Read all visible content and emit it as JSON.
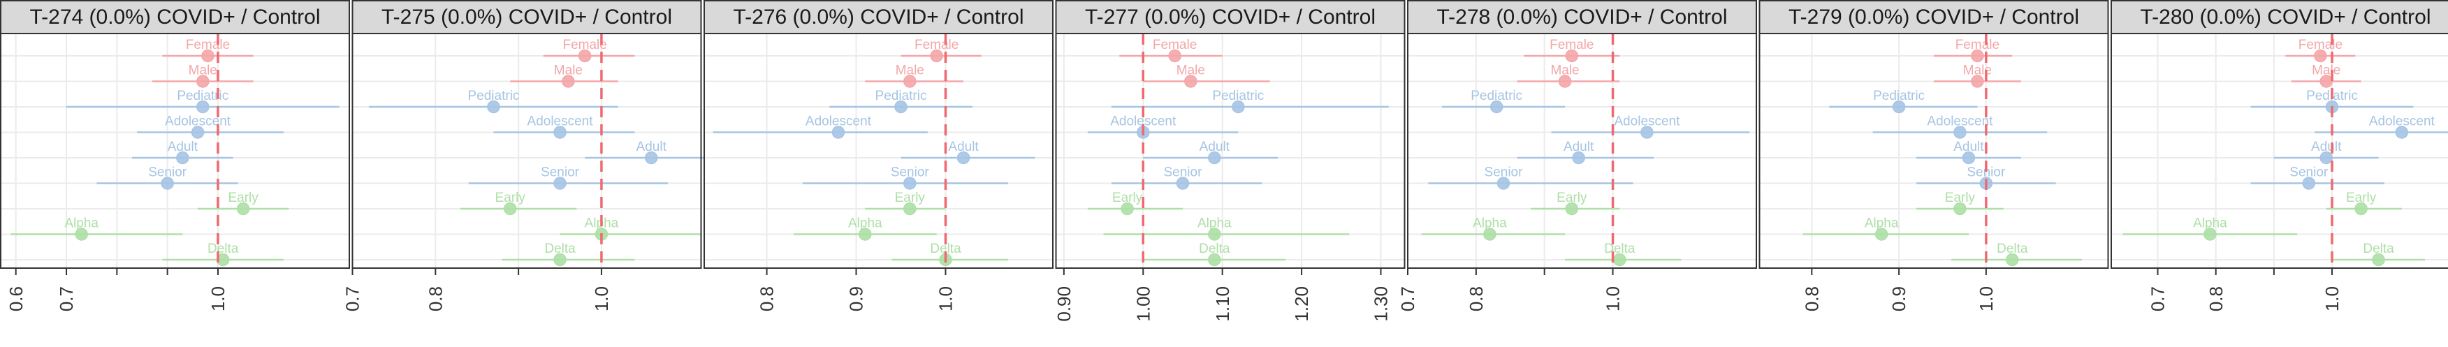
{
  "figure": {
    "background": "#ffffff",
    "strip_fill": "#d9d9d9",
    "grid_color": "#ebebeb",
    "reference_line_color": "#ef6a70",
    "group_colors": {
      "Sex": "#f4a6a8",
      "Age": "#a6c4e4",
      "Variant": "#addfa6"
    }
  },
  "chart_data": [
    {
      "type": "forest",
      "title": "T-274 (0.0%) COVID+ / Control",
      "xlim": [
        0.57,
        1.26
      ],
      "xticks": [
        0.6,
        0.7,
        1.0
      ],
      "xtick_labels": [
        "0.6",
        "0.7",
        "1.0"
      ],
      "minor_ticks": [
        0.8,
        0.9
      ],
      "reference": 1.0,
      "rows": [
        {
          "label": "Female",
          "group": "Sex",
          "estimate": 0.98,
          "lower": 0.89,
          "upper": 1.07
        },
        {
          "label": "Male",
          "group": "Sex",
          "estimate": 0.97,
          "lower": 0.87,
          "upper": 1.07
        },
        {
          "label": "Pediatric",
          "group": "Age",
          "estimate": 0.97,
          "lower": 0.7,
          "upper": 1.24
        },
        {
          "label": "Adolescent",
          "group": "Age",
          "estimate": 0.96,
          "lower": 0.84,
          "upper": 1.13
        },
        {
          "label": "Adult",
          "group": "Age",
          "estimate": 0.93,
          "lower": 0.83,
          "upper": 1.03
        },
        {
          "label": "Senior",
          "group": "Age",
          "estimate": 0.9,
          "lower": 0.76,
          "upper": 1.04
        },
        {
          "label": "Early",
          "group": "Variant",
          "estimate": 1.05,
          "lower": 0.96,
          "upper": 1.14
        },
        {
          "label": "Alpha",
          "group": "Variant",
          "estimate": 0.73,
          "lower": 0.59,
          "upper": 0.93
        },
        {
          "label": "Delta",
          "group": "Variant",
          "estimate": 1.01,
          "lower": 0.89,
          "upper": 1.13
        }
      ]
    },
    {
      "type": "forest",
      "title": "T-275 (0.0%) COVID+ / Control",
      "xlim": [
        0.7,
        1.12
      ],
      "xticks": [
        0.7,
        0.8,
        1.0
      ],
      "xtick_labels": [
        "0.7",
        "0.8",
        "1.0"
      ],
      "minor_ticks": [
        0.9
      ],
      "reference": 1.0,
      "rows": [
        {
          "label": "Female",
          "group": "Sex",
          "estimate": 0.98,
          "lower": 0.93,
          "upper": 1.04
        },
        {
          "label": "Male",
          "group": "Sex",
          "estimate": 0.96,
          "lower": 0.89,
          "upper": 1.02
        },
        {
          "label": "Pediatric",
          "group": "Age",
          "estimate": 0.87,
          "lower": 0.72,
          "upper": 1.02
        },
        {
          "label": "Adolescent",
          "group": "Age",
          "estimate": 0.95,
          "lower": 0.87,
          "upper": 1.04
        },
        {
          "label": "Adult",
          "group": "Age",
          "estimate": 1.06,
          "lower": 0.98,
          "upper": 1.13
        },
        {
          "label": "Senior",
          "group": "Age",
          "estimate": 0.95,
          "lower": 0.84,
          "upper": 1.08
        },
        {
          "label": "Early",
          "group": "Variant",
          "estimate": 0.89,
          "lower": 0.83,
          "upper": 0.97
        },
        {
          "label": "Alpha",
          "group": "Variant",
          "estimate": 1.0,
          "lower": 0.95,
          "upper": 1.12
        },
        {
          "label": "Delta",
          "group": "Variant",
          "estimate": 0.95,
          "lower": 0.88,
          "upper": 1.04
        }
      ]
    },
    {
      "type": "forest",
      "title": "T-276 (0.0%) COVID+ / Control",
      "xlim": [
        0.73,
        1.12
      ],
      "xticks": [
        0.8,
        0.9,
        1.0
      ],
      "xtick_labels": [
        "0.8",
        "0.9",
        "1.0"
      ],
      "minor_ticks": [],
      "reference": 1.0,
      "rows": [
        {
          "label": "Female",
          "group": "Sex",
          "estimate": 0.99,
          "lower": 0.95,
          "upper": 1.04
        },
        {
          "label": "Male",
          "group": "Sex",
          "estimate": 0.96,
          "lower": 0.91,
          "upper": 1.02
        },
        {
          "label": "Pediatric",
          "group": "Age",
          "estimate": 0.95,
          "lower": 0.87,
          "upper": 1.03
        },
        {
          "label": "Adolescent",
          "group": "Age",
          "estimate": 0.88,
          "lower": 0.74,
          "upper": 0.98
        },
        {
          "label": "Adult",
          "group": "Age",
          "estimate": 1.02,
          "lower": 0.95,
          "upper": 1.1
        },
        {
          "label": "Senior",
          "group": "Age",
          "estimate": 0.96,
          "lower": 0.84,
          "upper": 1.07
        },
        {
          "label": "Early",
          "group": "Variant",
          "estimate": 0.96,
          "lower": 0.91,
          "upper": 1.0
        },
        {
          "label": "Alpha",
          "group": "Variant",
          "estimate": 0.91,
          "lower": 0.83,
          "upper": 0.99
        },
        {
          "label": "Delta",
          "group": "Variant",
          "estimate": 1.0,
          "lower": 0.94,
          "upper": 1.07
        }
      ]
    },
    {
      "type": "forest",
      "title": "T-277 (0.0%) COVID+ / Control",
      "xlim": [
        0.89,
        1.33
      ],
      "xticks": [
        0.9,
        1.0,
        1.1,
        1.2,
        1.3
      ],
      "xtick_labels": [
        "0.90",
        "1.00",
        "1.10",
        "1.20",
        "1.30"
      ],
      "minor_ticks": [],
      "reference": 1.0,
      "rows": [
        {
          "label": "Female",
          "group": "Sex",
          "estimate": 1.04,
          "lower": 0.97,
          "upper": 1.1
        },
        {
          "label": "Male",
          "group": "Sex",
          "estimate": 1.06,
          "lower": 1.0,
          "upper": 1.16
        },
        {
          "label": "Pediatric",
          "group": "Age",
          "estimate": 1.12,
          "lower": 0.96,
          "upper": 1.31
        },
        {
          "label": "Adolescent",
          "group": "Age",
          "estimate": 1.0,
          "lower": 0.93,
          "upper": 1.12
        },
        {
          "label": "Adult",
          "group": "Age",
          "estimate": 1.09,
          "lower": 1.0,
          "upper": 1.17
        },
        {
          "label": "Senior",
          "group": "Age",
          "estimate": 1.05,
          "lower": 0.96,
          "upper": 1.15
        },
        {
          "label": "Early",
          "group": "Variant",
          "estimate": 0.98,
          "lower": 0.93,
          "upper": 1.05
        },
        {
          "label": "Alpha",
          "group": "Variant",
          "estimate": 1.09,
          "lower": 0.95,
          "upper": 1.26
        },
        {
          "label": "Delta",
          "group": "Variant",
          "estimate": 1.09,
          "lower": 1.0,
          "upper": 1.18
        }
      ]
    },
    {
      "type": "forest",
      "title": "T-278 (0.0%) COVID+ / Control",
      "xlim": [
        0.7,
        1.21
      ],
      "xticks": [
        0.7,
        0.8,
        1.0
      ],
      "xtick_labels": [
        "0.7",
        "0.8",
        "1.0"
      ],
      "minor_ticks": [
        0.9
      ],
      "reference": 1.0,
      "rows": [
        {
          "label": "Female",
          "group": "Sex",
          "estimate": 0.94,
          "lower": 0.87,
          "upper": 1.01
        },
        {
          "label": "Male",
          "group": "Sex",
          "estimate": 0.93,
          "lower": 0.86,
          "upper": 1.01
        },
        {
          "label": "Pediatric",
          "group": "Age",
          "estimate": 0.83,
          "lower": 0.75,
          "upper": 0.93
        },
        {
          "label": "Adolescent",
          "group": "Age",
          "estimate": 1.05,
          "lower": 0.91,
          "upper": 1.2
        },
        {
          "label": "Adult",
          "group": "Age",
          "estimate": 0.95,
          "lower": 0.86,
          "upper": 1.06
        },
        {
          "label": "Senior",
          "group": "Age",
          "estimate": 0.84,
          "lower": 0.73,
          "upper": 1.03
        },
        {
          "label": "Early",
          "group": "Variant",
          "estimate": 0.94,
          "lower": 0.88,
          "upper": 1.01
        },
        {
          "label": "Alpha",
          "group": "Variant",
          "estimate": 0.82,
          "lower": 0.72,
          "upper": 0.93
        },
        {
          "label": "Delta",
          "group": "Variant",
          "estimate": 1.01,
          "lower": 0.93,
          "upper": 1.1
        }
      ]
    },
    {
      "type": "forest",
      "title": "T-279 (0.0%) COVID+ / Control",
      "xlim": [
        0.74,
        1.14
      ],
      "xticks": [
        0.8,
        0.9,
        1.0
      ],
      "xtick_labels": [
        "0.8",
        "0.9",
        "1.0"
      ],
      "minor_ticks": [],
      "reference": 1.0,
      "rows": [
        {
          "label": "Female",
          "group": "Sex",
          "estimate": 0.99,
          "lower": 0.94,
          "upper": 1.03
        },
        {
          "label": "Male",
          "group": "Sex",
          "estimate": 0.99,
          "lower": 0.94,
          "upper": 1.04
        },
        {
          "label": "Pediatric",
          "group": "Age",
          "estimate": 0.9,
          "lower": 0.82,
          "upper": 0.99
        },
        {
          "label": "Adolescent",
          "group": "Age",
          "estimate": 0.97,
          "lower": 0.87,
          "upper": 1.07
        },
        {
          "label": "Adult",
          "group": "Age",
          "estimate": 0.98,
          "lower": 0.92,
          "upper": 1.04
        },
        {
          "label": "Senior",
          "group": "Age",
          "estimate": 1.0,
          "lower": 0.92,
          "upper": 1.08
        },
        {
          "label": "Early",
          "group": "Variant",
          "estimate": 0.97,
          "lower": 0.92,
          "upper": 1.02
        },
        {
          "label": "Alpha",
          "group": "Variant",
          "estimate": 0.88,
          "lower": 0.79,
          "upper": 0.98
        },
        {
          "label": "Delta",
          "group": "Variant",
          "estimate": 1.03,
          "lower": 0.96,
          "upper": 1.11
        }
      ]
    },
    {
      "type": "forest",
      "title": "T-280 (0.0%) COVID+ / Control",
      "xlim": [
        0.62,
        1.22
      ],
      "xticks": [
        0.7,
        0.8,
        1.0
      ],
      "xtick_labels": [
        "0.7",
        "0.8",
        "1.0"
      ],
      "minor_ticks": [
        0.9
      ],
      "reference": 1.0,
      "rows": [
        {
          "label": "Female",
          "group": "Sex",
          "estimate": 0.98,
          "lower": 0.92,
          "upper": 1.04
        },
        {
          "label": "Male",
          "group": "Sex",
          "estimate": 0.99,
          "lower": 0.93,
          "upper": 1.05
        },
        {
          "label": "Pediatric",
          "group": "Age",
          "estimate": 1.0,
          "lower": 0.86,
          "upper": 1.14
        },
        {
          "label": "Adolescent",
          "group": "Age",
          "estimate": 1.12,
          "lower": 0.97,
          "upper": 1.21
        },
        {
          "label": "Adult",
          "group": "Age",
          "estimate": 0.99,
          "lower": 0.9,
          "upper": 1.08
        },
        {
          "label": "Senior",
          "group": "Age",
          "estimate": 0.96,
          "lower": 0.86,
          "upper": 1.09
        },
        {
          "label": "Early",
          "group": "Variant",
          "estimate": 1.05,
          "lower": 0.99,
          "upper": 1.12
        },
        {
          "label": "Alpha",
          "group": "Variant",
          "estimate": 0.79,
          "lower": 0.64,
          "upper": 0.94
        },
        {
          "label": "Delta",
          "group": "Variant",
          "estimate": 1.08,
          "lower": 1.0,
          "upper": 1.16
        }
      ]
    }
  ]
}
